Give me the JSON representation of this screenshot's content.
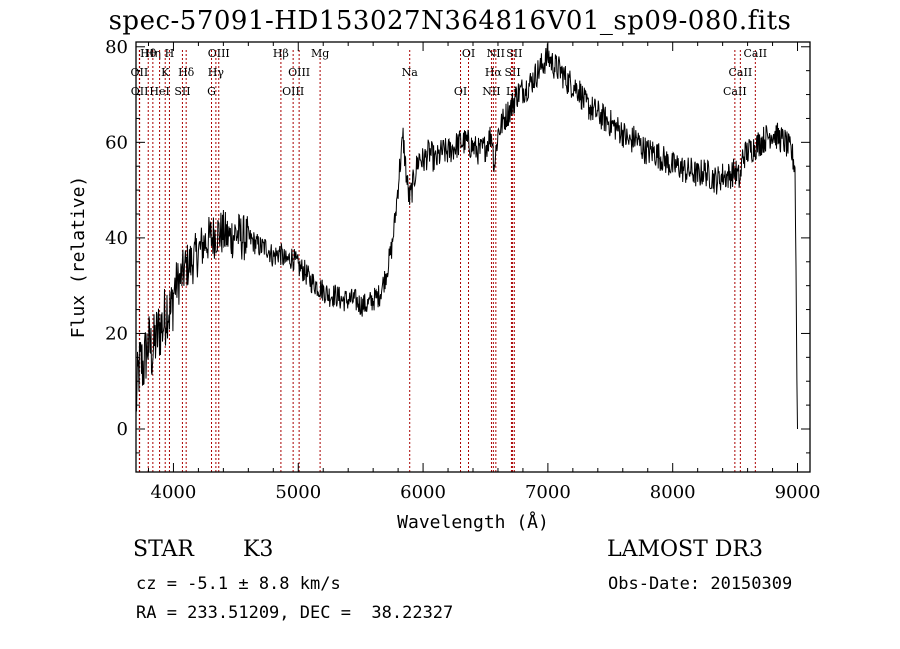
{
  "title": "spec-57091-HD153027N364816V01_sp09-080.fits",
  "info": {
    "object_type": "STAR",
    "spectral_class": "K3",
    "survey": "LAMOST DR3",
    "cz": "cz = -5.1 ± 8.8 km/s",
    "obs_date": "Obs-Date: 20150309",
    "radec": "RA = 233.51209, DEC =  38.22327"
  },
  "colors": {
    "spectrum": "#000000",
    "lines": "#aa0000",
    "axes": "#000000"
  },
  "chart_data": {
    "type": "line",
    "title": "spec-57091-HD153027N364816V01_sp09-080.fits",
    "xlabel": "Wavelength (Å)",
    "ylabel": "Flux (relative)",
    "xlim": [
      3700,
      9100
    ],
    "ylim": [
      -9,
      81
    ],
    "xticks": [
      4000,
      5000,
      6000,
      7000,
      8000,
      9000
    ],
    "yticks": [
      0,
      20,
      40,
      60,
      80
    ],
    "grid": false,
    "series": [
      {
        "x": [
          3700,
          3720,
          3740,
          3760,
          3780,
          3800,
          3830,
          3860,
          3890,
          3920,
          3950,
          3980,
          4010,
          4050,
          4100,
          4150,
          4200,
          4250,
          4300,
          4350,
          4400,
          4450,
          4500,
          4550,
          4600,
          4650,
          4700,
          4750,
          4800,
          4850,
          4900,
          4950,
          5000,
          5050,
          5100,
          5150,
          5200,
          5250,
          5300,
          5350,
          5400,
          5450,
          5500,
          5550,
          5600,
          5650,
          5700,
          5750,
          5780,
          5810,
          5840,
          5870,
          5890,
          5910,
          5940,
          5970,
          6000,
          6050,
          6100,
          6150,
          6200,
          6250,
          6300,
          6350,
          6400,
          6450,
          6500,
          6550,
          6570,
          6600,
          6650,
          6700,
          6750,
          6800,
          6850,
          6900,
          6950,
          7000,
          7050,
          7100,
          7150,
          7200,
          7250,
          7300,
          7350,
          7400,
          7450,
          7500,
          7550,
          7600,
          7650,
          7700,
          7750,
          7800,
          7850,
          7900,
          7950,
          8000,
          8050,
          8100,
          8150,
          8200,
          8250,
          8300,
          8350,
          8400,
          8450,
          8500,
          8540,
          8560,
          8600,
          8650,
          8700,
          8750,
          8800,
          8850,
          8900,
          8950,
          8980,
          9000
        ],
        "y": [
          5,
          12,
          14,
          13,
          16,
          18,
          16,
          19,
          21,
          22,
          26,
          24,
          30,
          31,
          34,
          35,
          37,
          39,
          40,
          41,
          41,
          40,
          41,
          40,
          40,
          39,
          38,
          38,
          36,
          37,
          35,
          36,
          34,
          33,
          31,
          30,
          29,
          28,
          28,
          27,
          27,
          27,
          26,
          26,
          27,
          28,
          32,
          38,
          45,
          54,
          61,
          52,
          48,
          50,
          54,
          57,
          56,
          58,
          56,
          58,
          58,
          59,
          60,
          60,
          59,
          58,
          59,
          62,
          55,
          62,
          65,
          67,
          70,
          71,
          72,
          74,
          76,
          78,
          76,
          75,
          73,
          72,
          71,
          68,
          67,
          66,
          65,
          64,
          63,
          62,
          60,
          61,
          59,
          58,
          58,
          57,
          56,
          55,
          55,
          54,
          54,
          53,
          54,
          53,
          52,
          53,
          53,
          54,
          52,
          57,
          58,
          59,
          60,
          61,
          62,
          61,
          60,
          58,
          55,
          0
        ]
      }
    ],
    "lines": [
      {
        "label": "Hθ",
        "x": 3798
      },
      {
        "label": "OII",
        "x": 3727
      },
      {
        "label": "OII",
        "x": 3729
      },
      {
        "label": "Hη",
        "x": 3835
      },
      {
        "label": "K",
        "x": 3934
      },
      {
        "label": "HeI",
        "x": 3889
      },
      {
        "label": "H",
        "x": 3968
      },
      {
        "label": "Hδ",
        "x": 4102
      },
      {
        "label": "SII",
        "x": 4072
      },
      {
        "label": "OIII",
        "x": 4363
      },
      {
        "label": "Hγ",
        "x": 4340
      },
      {
        "label": "G",
        "x": 4305
      },
      {
        "label": "Hβ",
        "x": 4861
      },
      {
        "label": "OIII",
        "x": 5007
      },
      {
        "label": "OIII",
        "x": 4959
      },
      {
        "label": "Mg",
        "x": 5175
      },
      {
        "label": "Na",
        "x": 5893
      },
      {
        "label": "OI",
        "x": 6300
      },
      {
        "label": "OI",
        "x": 6364
      },
      {
        "label": "Hα",
        "x": 6563
      },
      {
        "label": "NII",
        "x": 6548
      },
      {
        "label": "NII",
        "x": 6583
      },
      {
        "label": "SII",
        "x": 6717
      },
      {
        "label": "Li",
        "x": 6708
      },
      {
        "label": "SII",
        "x": 6731
      },
      {
        "label": "CaII",
        "x": 8542
      },
      {
        "label": "CaII",
        "x": 8498
      },
      {
        "label": "CaII",
        "x": 8662
      }
    ]
  }
}
